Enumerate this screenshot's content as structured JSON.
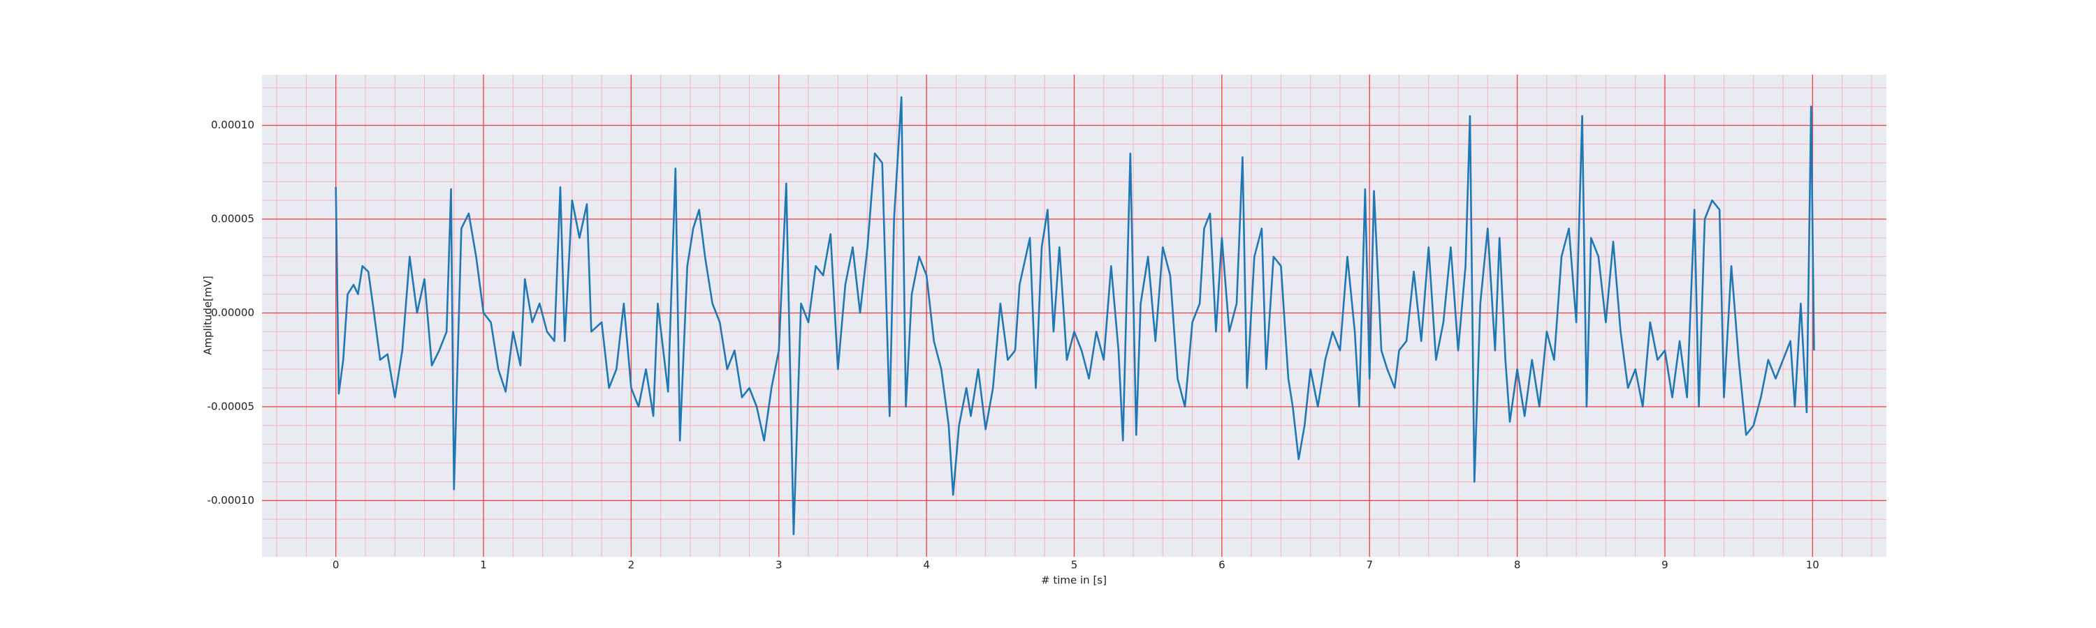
{
  "chart_data": {
    "type": "line",
    "xlabel": "# time in [s]",
    "ylabel": "Amplitude[mV]",
    "xlim": [
      -0.5,
      10.5
    ],
    "ylim": [
      -0.00013,
      0.000127
    ],
    "xticks": [
      0,
      1,
      2,
      3,
      4,
      5,
      6,
      7,
      8,
      9,
      10
    ],
    "yticks": [
      {
        "value": -0.0001,
        "label": "-0.00010"
      },
      -5e-05,
      {
        "value": 0,
        "label": "0.00000"
      },
      5e-05,
      {
        "value": 0.0001,
        "label": "0.00010"
      }
    ],
    "xminorticks": [
      -0.4,
      -0.2,
      0.2,
      0.4,
      0.6,
      0.8,
      1.2,
      1.4,
      1.6,
      1.8,
      2.2,
      2.4,
      2.6,
      2.8,
      3.2,
      3.4,
      3.6,
      3.8,
      4.2,
      4.4,
      4.6,
      4.8,
      5.2,
      5.4,
      5.6,
      5.8,
      6.2,
      6.4,
      6.6,
      6.8,
      7.2,
      7.4,
      7.6,
      7.8,
      8.2,
      8.4,
      8.6,
      8.8,
      9.2,
      9.4,
      9.6,
      9.8,
      10.2,
      10.4
    ],
    "yminorticks": [
      -0.00012,
      -0.00011,
      -9e-05,
      -8e-05,
      -7e-05,
      -6e-05,
      -4e-05,
      -3e-05,
      -2e-05,
      -1e-05,
      1e-05,
      2e-05,
      3e-05,
      4e-05,
      6e-05,
      7e-05,
      8e-05,
      9e-05,
      0.00011,
      0.00012
    ],
    "grid": true,
    "minor_grid": true,
    "grid_color": "#f03c3c",
    "minor_grid_color": "#f5b3bb",
    "background": "#eaeaf2",
    "x": [
      0.0,
      0.02,
      0.05,
      0.08,
      0.12,
      0.15,
      0.18,
      0.22,
      0.25,
      0.3,
      0.35,
      0.4,
      0.45,
      0.5,
      0.55,
      0.6,
      0.65,
      0.7,
      0.75,
      0.78,
      0.8,
      0.85,
      0.9,
      0.95,
      1.0,
      1.05,
      1.1,
      1.15,
      1.2,
      1.25,
      1.28,
      1.33,
      1.38,
      1.43,
      1.48,
      1.52,
      1.55,
      1.6,
      1.65,
      1.7,
      1.73,
      1.8,
      1.85,
      1.9,
      1.95,
      2.0,
      2.05,
      2.1,
      2.15,
      2.18,
      2.25,
      2.3,
      2.33,
      2.38,
      2.42,
      2.46,
      2.5,
      2.55,
      2.6,
      2.65,
      2.7,
      2.75,
      2.8,
      2.85,
      2.9,
      2.95,
      3.0,
      3.05,
      3.1,
      3.15,
      3.2,
      3.25,
      3.3,
      3.35,
      3.4,
      3.45,
      3.5,
      3.55,
      3.6,
      3.65,
      3.7,
      3.75,
      3.78,
      3.83,
      3.86,
      3.9,
      3.95,
      4.0,
      4.05,
      4.1,
      4.15,
      4.18,
      4.22,
      4.27,
      4.3,
      4.35,
      4.4,
      4.45,
      4.5,
      4.55,
      4.6,
      4.63,
      4.7,
      4.74,
      4.78,
      4.82,
      4.86,
      4.9,
      4.95,
      5.0,
      5.05,
      5.1,
      5.15,
      5.2,
      5.25,
      5.3,
      5.33,
      5.38,
      5.42,
      5.45,
      5.5,
      5.55,
      5.6,
      5.65,
      5.7,
      5.75,
      5.8,
      5.85,
      5.88,
      5.92,
      5.96,
      6.0,
      6.05,
      6.1,
      6.14,
      6.17,
      6.22,
      6.27,
      6.3,
      6.35,
      6.4,
      6.45,
      6.48,
      6.52,
      6.56,
      6.6,
      6.65,
      6.7,
      6.75,
      6.8,
      6.85,
      6.9,
      6.93,
      6.97,
      7.0,
      7.03,
      7.08,
      7.12,
      7.17,
      7.2,
      7.25,
      7.3,
      7.35,
      7.4,
      7.45,
      7.5,
      7.55,
      7.6,
      7.65,
      7.68,
      7.71,
      7.75,
      7.8,
      7.85,
      7.88,
      7.92,
      7.95,
      8.0,
      8.05,
      8.1,
      8.15,
      8.2,
      8.25,
      8.3,
      8.35,
      8.4,
      8.44,
      8.47,
      8.5,
      8.55,
      8.6,
      8.65,
      8.7,
      8.75,
      8.8,
      8.85,
      8.9,
      8.95,
      9.0,
      9.05,
      9.1,
      9.15,
      9.2,
      9.23,
      9.27,
      9.32,
      9.37,
      9.4,
      9.45,
      9.5,
      9.55,
      9.6,
      9.65,
      9.7,
      9.75,
      9.8,
      9.85,
      9.88,
      9.92,
      9.96,
      9.99,
      10.01
    ],
    "series": [
      {
        "color": "#1f77b4",
        "values": [
          6.7e-05,
          -4.3e-05,
          -2.5e-05,
          1e-05,
          1.5e-05,
          1e-05,
          2.5e-05,
          2.2e-05,
          5e-06,
          -2.5e-05,
          -2.2e-05,
          -4.5e-05,
          -2e-05,
          3e-05,
          0,
          1.8e-05,
          -2.8e-05,
          -2e-05,
          -1e-05,
          6.6e-05,
          -9.4e-05,
          4.5e-05,
          5.3e-05,
          3e-05,
          0,
          -5e-06,
          -3e-05,
          -4.2e-05,
          -1e-05,
          -2.8e-05,
          1.8e-05,
          -5e-06,
          5e-06,
          -1e-05,
          -1.5e-05,
          6.7e-05,
          -1.5e-05,
          6e-05,
          4e-05,
          5.8e-05,
          -1e-05,
          -5e-06,
          -4e-05,
          -3e-05,
          5e-06,
          -4e-05,
          -5e-05,
          -3e-05,
          -5.5e-05,
          5e-06,
          -4.2e-05,
          7.7e-05,
          -6.8e-05,
          2.5e-05,
          4.5e-05,
          5.5e-05,
          3e-05,
          5e-06,
          -5e-06,
          -3e-05,
          -2e-05,
          -4.5e-05,
          -4e-05,
          -5e-05,
          -6.8e-05,
          -4e-05,
          -2e-05,
          6.9e-05,
          -0.000118,
          5e-06,
          -5e-06,
          2.5e-05,
          2e-05,
          4.2e-05,
          -3e-05,
          1.5e-05,
          3.5e-05,
          0,
          3.5e-05,
          8.5e-05,
          8e-05,
          -5.5e-05,
          5e-05,
          0.000115,
          -5e-05,
          1e-05,
          3e-05,
          2e-05,
          -1.5e-05,
          -3e-05,
          -6e-05,
          -9.7e-05,
          -6e-05,
          -4e-05,
          -5.5e-05,
          -3e-05,
          -6.2e-05,
          -4e-05,
          5e-06,
          -2.5e-05,
          -2e-05,
          1.5e-05,
          4e-05,
          -4e-05,
          3.5e-05,
          5.5e-05,
          -1e-05,
          3.5e-05,
          -2.5e-05,
          -1e-05,
          -2e-05,
          -3.5e-05,
          -1e-05,
          -2.5e-05,
          2.5e-05,
          -2e-05,
          -6.8e-05,
          8.5e-05,
          -6.5e-05,
          5e-06,
          3e-05,
          -1.5e-05,
          3.5e-05,
          2e-05,
          -3.5e-05,
          -5e-05,
          -5e-06,
          5e-06,
          4.5e-05,
          5.3e-05,
          -1e-05,
          4e-05,
          -1e-05,
          5e-06,
          8.3e-05,
          -4e-05,
          3e-05,
          4.5e-05,
          -3e-05,
          3e-05,
          2.5e-05,
          -3.5e-05,
          -5e-05,
          -7.8e-05,
          -6e-05,
          -3e-05,
          -5e-05,
          -2.5e-05,
          -1e-05,
          -2e-05,
          3e-05,
          -1e-05,
          -5e-05,
          6.6e-05,
          -3.5e-05,
          6.5e-05,
          -2e-05,
          -3e-05,
          -4e-05,
          -2e-05,
          -1.5e-05,
          2.2e-05,
          -1.5e-05,
          3.5e-05,
          -2.5e-05,
          -5e-06,
          3.5e-05,
          -2e-05,
          2.5e-05,
          0.000105,
          -9e-05,
          5e-06,
          4.5e-05,
          -2e-05,
          4e-05,
          -2.5e-05,
          -5.8e-05,
          -3e-05,
          -5.5e-05,
          -2.5e-05,
          -5e-05,
          -1e-05,
          -2.5e-05,
          3e-05,
          4.5e-05,
          -5e-06,
          0.000105,
          -5e-05,
          4e-05,
          3e-05,
          -5e-06,
          3.8e-05,
          -1e-05,
          -4e-05,
          -3e-05,
          -5e-05,
          -5e-06,
          -2.5e-05,
          -2e-05,
          -4.5e-05,
          -1.5e-05,
          -4.5e-05,
          5.5e-05,
          -5e-05,
          5e-05,
          6e-05,
          5.5e-05,
          -4.5e-05,
          2.5e-05,
          -2.5e-05,
          -6.5e-05,
          -6e-05,
          -4.5e-05,
          -2.5e-05,
          -3.5e-05,
          -2.5e-05,
          -1.5e-05,
          -5e-05,
          5e-06,
          -5.3e-05,
          0.00011,
          -2e-05
        ]
      }
    ]
  }
}
